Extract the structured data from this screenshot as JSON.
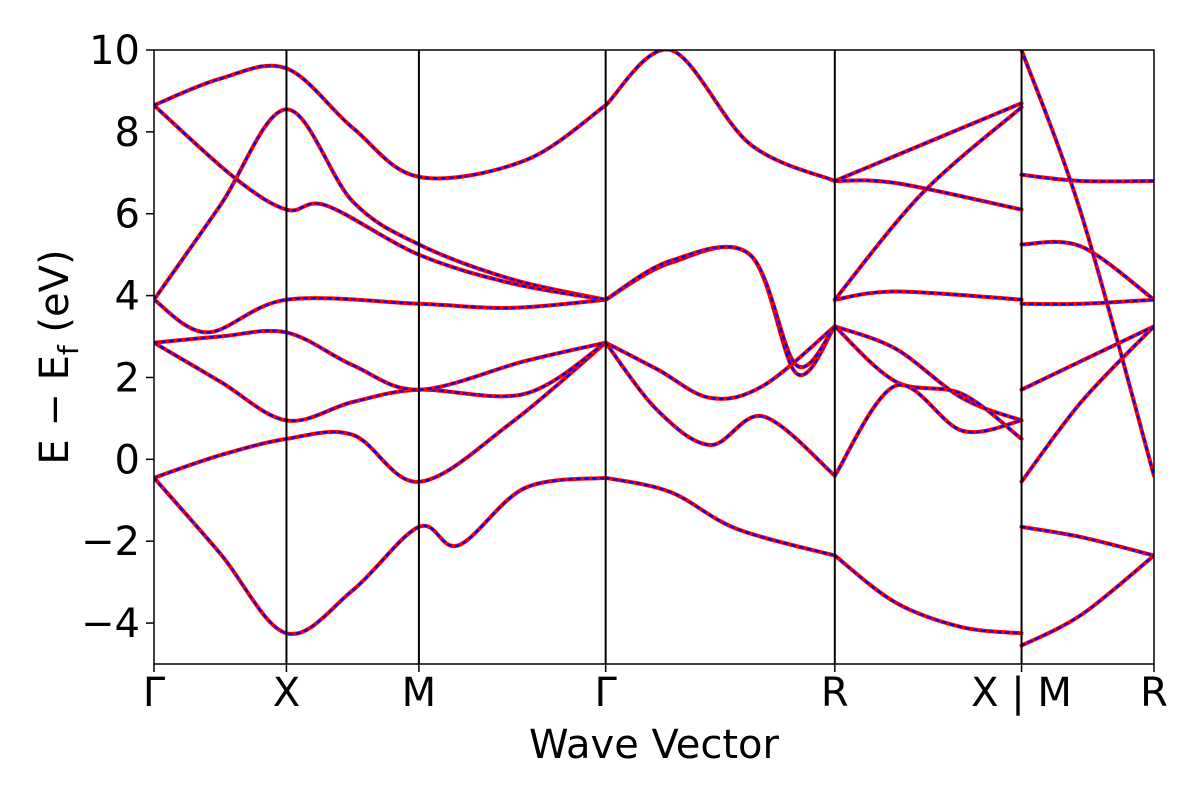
{
  "chart_data": {
    "type": "line",
    "title": "",
    "xlabel": "Wave Vector",
    "ylabel_parts": {
      "main": "E − E",
      "sub": "f",
      "unit": " (eV)"
    },
    "ylim": [
      -5,
      10
    ],
    "yticks": [
      {
        "value": -4,
        "label": "−4"
      },
      {
        "value": -2,
        "label": "−2"
      },
      {
        "value": 0,
        "label": "0"
      },
      {
        "value": 2,
        "label": "2"
      },
      {
        "value": 4,
        "label": "4"
      },
      {
        "value": 6,
        "label": "6"
      },
      {
        "value": 8,
        "label": "8"
      },
      {
        "value": 10,
        "label": "10"
      }
    ],
    "x_range": [
      0,
      7.55
    ],
    "kpoints": [
      {
        "label": "Γ",
        "x": 0
      },
      {
        "label": "X",
        "x": 1
      },
      {
        "label": "M",
        "x": 2
      },
      {
        "label": "Γ",
        "x": 3.41
      },
      {
        "label": "R",
        "x": 5.14
      },
      {
        "label": "X | M",
        "x": 6.55
      },
      {
        "label": "R",
        "x": 7.55
      }
    ],
    "legend": "none",
    "grid": false,
    "series_style": [
      {
        "name": "",
        "color": "#ff0000",
        "dash": "solid"
      },
      {
        "name": "",
        "color": "#0000ff",
        "dash": "dotted"
      }
    ],
    "bands": [
      [
        [
          0,
          -0.45
        ],
        [
          0.5,
          0.1
        ],
        [
          1,
          0.5
        ],
        [
          1.5,
          0.6
        ],
        [
          2,
          -0.55
        ],
        [
          2.7,
          0.9
        ],
        [
          3.41,
          2.85
        ]
      ],
      [
        [
          0,
          -0.45
        ],
        [
          0.5,
          -2.3
        ],
        [
          1,
          -4.25
        ],
        [
          1.5,
          -3.2
        ],
        [
          2,
          -1.65
        ],
        [
          2.3,
          -2.1
        ],
        [
          2.8,
          -0.7
        ],
        [
          3.41,
          -0.45
        ]
      ],
      [
        [
          0,
          2.85
        ],
        [
          0.5,
          1.9
        ],
        [
          1,
          0.95
        ],
        [
          1.5,
          1.4
        ],
        [
          2,
          1.7
        ],
        [
          2.8,
          1.6
        ],
        [
          3.41,
          2.85
        ]
      ],
      [
        [
          0,
          2.85
        ],
        [
          0.5,
          3
        ],
        [
          1,
          3.1
        ],
        [
          1.5,
          2.3
        ],
        [
          2,
          1.7
        ],
        [
          2.8,
          2.4
        ],
        [
          3.41,
          2.85
        ]
      ],
      [
        [
          0,
          3.9
        ],
        [
          0.4,
          3.1
        ],
        [
          1,
          3.9
        ],
        [
          2,
          3.8
        ],
        [
          2.7,
          3.7
        ],
        [
          3.41,
          3.9
        ]
      ],
      [
        [
          0,
          3.9
        ],
        [
          0.5,
          6.2
        ],
        [
          1,
          8.55
        ],
        [
          1.5,
          6.3
        ],
        [
          2,
          5.25
        ],
        [
          2.7,
          4.4
        ],
        [
          3.41,
          3.9
        ]
      ],
      [
        [
          0,
          8.65
        ],
        [
          0.6,
          6.9
        ],
        [
          1,
          6.1
        ],
        [
          1.3,
          6.2
        ],
        [
          2,
          5
        ],
        [
          2.7,
          4.3
        ],
        [
          3.41,
          3.9
        ]
      ],
      [
        [
          0,
          8.65
        ],
        [
          0.5,
          9.3
        ],
        [
          1,
          9.55
        ],
        [
          1.5,
          8.1
        ],
        [
          2,
          6.9
        ],
        [
          2.8,
          7.3
        ],
        [
          3.41,
          8.65
        ]
      ],
      [
        [
          3.41,
          2.85
        ],
        [
          3.8,
          2.2
        ],
        [
          4.2,
          1.5
        ],
        [
          4.6,
          1.8
        ],
        [
          5.14,
          3.25
        ]
      ],
      [
        [
          3.41,
          2.85
        ],
        [
          3.8,
          1.2
        ],
        [
          4.2,
          0.35
        ],
        [
          4.6,
          1.05
        ],
        [
          5.14,
          -0.4
        ]
      ],
      [
        [
          3.41,
          -0.45
        ],
        [
          3.9,
          -0.8
        ],
        [
          4.4,
          -1.7
        ],
        [
          5.14,
          -2.35
        ]
      ],
      [
        [
          3.41,
          3.9
        ],
        [
          3.9,
          4.8
        ],
        [
          4.5,
          5
        ],
        [
          4.85,
          2.1
        ],
        [
          5.14,
          3.25
        ]
      ],
      [
        [
          3.41,
          3.9
        ],
        [
          3.9,
          4.85
        ],
        [
          4.5,
          5
        ],
        [
          4.85,
          2.3
        ],
        [
          5.14,
          3.25
        ]
      ],
      [
        [
          3.41,
          8.65
        ],
        [
          3.9,
          10
        ],
        [
          4.5,
          7.7
        ],
        [
          5.14,
          6.8
        ]
      ],
      [
        [
          5.14,
          3.25
        ],
        [
          5.6,
          2.7
        ],
        [
          6.1,
          1.5
        ],
        [
          6.55,
          0.95
        ]
      ],
      [
        [
          5.14,
          3.25
        ],
        [
          5.6,
          1.9
        ],
        [
          6.1,
          1.6
        ],
        [
          6.55,
          0.5
        ]
      ],
      [
        [
          5.14,
          -0.4
        ],
        [
          5.6,
          1.8
        ],
        [
          6.1,
          0.7
        ],
        [
          6.55,
          0.95
        ]
      ],
      [
        [
          5.14,
          -2.35
        ],
        [
          5.6,
          -3.5
        ],
        [
          6.1,
          -4.1
        ],
        [
          6.55,
          -4.25
        ]
      ],
      [
        [
          5.14,
          3.9
        ],
        [
          5.6,
          4.1
        ],
        [
          6.55,
          3.9
        ]
      ],
      [
        [
          5.14,
          6.8
        ],
        [
          5.6,
          6.75
        ],
        [
          6.55,
          6.1
        ]
      ],
      [
        [
          5.14,
          6.8
        ],
        [
          6.55,
          8.7
        ]
      ],
      [
        [
          5.14,
          3.9
        ],
        [
          5.8,
          6.5
        ],
        [
          6.55,
          8.6
        ]
      ],
      [
        [
          6.55,
          6.95
        ],
        [
          7,
          6.8
        ],
        [
          7.55,
          6.8
        ]
      ],
      [
        [
          6.55,
          5.25
        ],
        [
          7,
          5.2
        ],
        [
          7.55,
          3.9
        ]
      ],
      [
        [
          6.55,
          3.8
        ],
        [
          7,
          3.8
        ],
        [
          7.55,
          3.9
        ]
      ],
      [
        [
          6.55,
          1.7
        ],
        [
          7,
          2.4
        ],
        [
          7.55,
          3.25
        ]
      ],
      [
        [
          6.55,
          -0.55
        ],
        [
          7,
          1.4
        ],
        [
          7.55,
          3.25
        ]
      ],
      [
        [
          6.55,
          -1.65
        ],
        [
          7,
          -1.9
        ],
        [
          7.55,
          -2.35
        ]
      ],
      [
        [
          6.55,
          -4.55
        ],
        [
          7,
          -3.8
        ],
        [
          7.55,
          -2.35
        ]
      ],
      [
        [
          6.55,
          10
        ],
        [
          7,
          6
        ],
        [
          7.55,
          -0.4
        ]
      ]
    ]
  }
}
